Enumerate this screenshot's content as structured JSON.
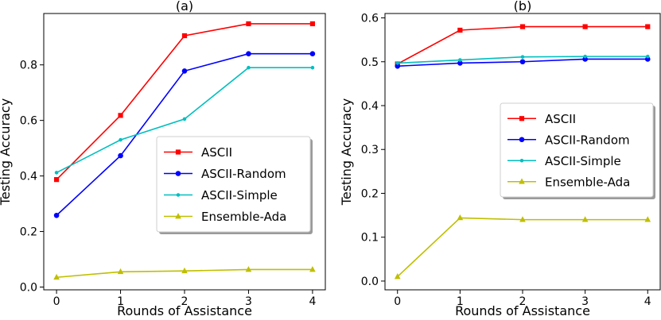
{
  "chart_data": [
    {
      "type": "line",
      "title": "(a)",
      "xlabel": "Rounds of Assistance",
      "ylabel": "Testing Accuracy",
      "x": [
        0,
        1,
        2,
        3,
        4
      ],
      "xlim": [
        -0.2,
        4.2
      ],
      "ylim": [
        -0.01,
        0.985
      ],
      "xticks": [
        "0",
        "1",
        "2",
        "3",
        "4"
      ],
      "yticks": [
        "0.0",
        "0.2",
        "0.4",
        "0.6",
        "0.8"
      ],
      "legend_position": "center-right",
      "series": [
        {
          "name": "ASCII",
          "color": "#ff0000",
          "marker": "square",
          "values": [
            0.387,
            0.618,
            0.905,
            0.948,
            0.948
          ]
        },
        {
          "name": "ASCII-Random",
          "color": "#0000ff",
          "marker": "circle",
          "values": [
            0.258,
            0.473,
            0.778,
            0.84,
            0.84
          ]
        },
        {
          "name": "ASCII-Simple",
          "color": "#00bfbf",
          "marker": "point",
          "values": [
            0.412,
            0.53,
            0.605,
            0.79,
            0.79
          ]
        },
        {
          "name": "Ensemble-Ada",
          "color": "#bfbf00",
          "marker": "triangle",
          "values": [
            0.035,
            0.055,
            0.058,
            0.063,
            0.063
          ]
        }
      ]
    },
    {
      "type": "line",
      "title": "(b)",
      "xlabel": "Rounds of Assistance",
      "ylabel": "Testing Accuracy",
      "x": [
        0,
        1,
        2,
        3,
        4
      ],
      "xlim": [
        -0.2,
        4.2
      ],
      "ylim": [
        -0.02,
        0.61
      ],
      "xticks": [
        "0",
        "1",
        "2",
        "3",
        "4"
      ],
      "yticks": [
        "0.0",
        "0.1",
        "0.2",
        "0.3",
        "0.4",
        "0.5",
        "0.6"
      ],
      "legend_position": "center-right",
      "series": [
        {
          "name": "ASCII",
          "color": "#ff0000",
          "marker": "square",
          "values": [
            0.495,
            0.572,
            0.58,
            0.58,
            0.58
          ]
        },
        {
          "name": "ASCII-Random",
          "color": "#0000ff",
          "marker": "circle",
          "values": [
            0.49,
            0.497,
            0.5,
            0.506,
            0.506
          ]
        },
        {
          "name": "ASCII-Simple",
          "color": "#00bfbf",
          "marker": "point",
          "values": [
            0.497,
            0.504,
            0.511,
            0.512,
            0.512
          ]
        },
        {
          "name": "Ensemble-Ada",
          "color": "#bfbf00",
          "marker": "triangle",
          "values": [
            0.01,
            0.144,
            0.14,
            0.14,
            0.14
          ]
        }
      ]
    }
  ]
}
